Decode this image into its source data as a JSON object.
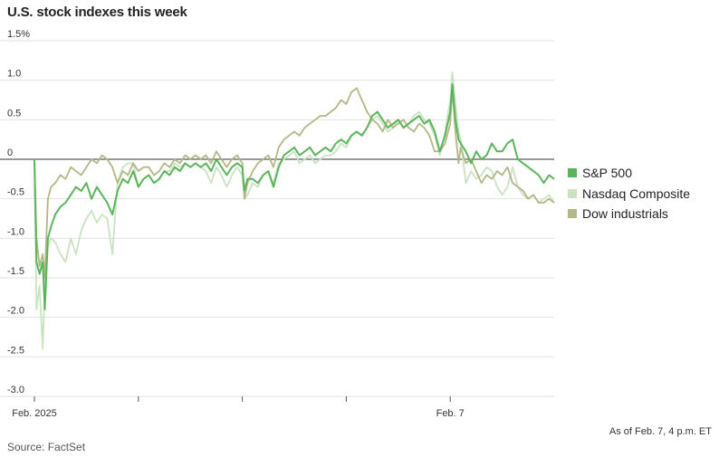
{
  "title": "U.S. stock indexes this week",
  "as_of": "As of Feb. 7, 4 p.m. ET",
  "source": "Source: FactSet",
  "chart_data": {
    "type": "line",
    "title": "U.S. stock indexes this week",
    "y_tick_labels": [
      "1.5%",
      "1.0",
      "0.5",
      "0",
      "-0.5",
      "-1.0",
      "-1.5",
      "-2.0",
      "-2.5",
      "-3.0"
    ],
    "y_tick_values": [
      1.5,
      1.0,
      0.5,
      0,
      -0.5,
      -1.0,
      -1.5,
      -2.0,
      -2.5,
      -3.0
    ],
    "ylim": [
      -3.0,
      1.5
    ],
    "x_tick_labels": [
      {
        "label": "Feb. 2025",
        "x": 0
      },
      {
        "label": "Feb. 7",
        "x": 4
      }
    ],
    "x_tick_marks": [
      0,
      1,
      2,
      3,
      4
    ],
    "xlim": [
      0,
      5
    ],
    "grid": true,
    "legend_position": "right",
    "series": [
      {
        "name": "S&P 500",
        "color": "#5ab55a",
        "x": [
          0,
          0.02,
          0.05,
          0.08,
          0.1,
          0.13,
          0.16,
          0.2,
          0.25,
          0.3,
          0.35,
          0.4,
          0.45,
          0.5,
          0.55,
          0.6,
          0.65,
          0.7,
          0.75,
          0.8,
          0.85,
          0.9,
          0.95,
          1.0,
          1.05,
          1.1,
          1.15,
          1.2,
          1.25,
          1.3,
          1.35,
          1.4,
          1.45,
          1.5,
          1.55,
          1.6,
          1.65,
          1.7,
          1.75,
          1.8,
          1.85,
          1.9,
          1.95,
          2.0,
          2.02,
          2.05,
          2.1,
          2.15,
          2.2,
          2.25,
          2.3,
          2.35,
          2.4,
          2.45,
          2.5,
          2.55,
          2.6,
          2.65,
          2.7,
          2.75,
          2.8,
          2.85,
          2.9,
          2.95,
          3.0,
          3.05,
          3.1,
          3.15,
          3.2,
          3.25,
          3.3,
          3.35,
          3.4,
          3.45,
          3.5,
          3.55,
          3.6,
          3.65,
          3.7,
          3.75,
          3.8,
          3.85,
          3.9,
          3.95,
          4.0,
          4.02,
          4.05,
          4.08,
          4.1,
          4.15,
          4.2,
          4.25,
          4.3,
          4.35,
          4.4,
          4.45,
          4.5,
          4.55,
          4.6,
          4.65,
          4.7,
          4.75,
          4.8,
          4.85,
          4.9,
          4.95,
          5.0
        ],
        "y": [
          0,
          -1.3,
          -1.45,
          -1.3,
          -1.9,
          -1.0,
          -0.85,
          -0.7,
          -0.6,
          -0.55,
          -0.45,
          -0.35,
          -0.4,
          -0.3,
          -0.5,
          -0.35,
          -0.45,
          -0.55,
          -0.7,
          -0.4,
          -0.25,
          -0.3,
          -0.15,
          -0.35,
          -0.25,
          -0.2,
          -0.3,
          -0.25,
          -0.15,
          -0.2,
          -0.1,
          -0.15,
          -0.05,
          -0.1,
          -0.05,
          -0.1,
          -0.05,
          -0.15,
          0.0,
          -0.1,
          -0.2,
          -0.1,
          -0.05,
          -0.1,
          -0.4,
          -0.25,
          -0.25,
          -0.3,
          -0.2,
          -0.15,
          -0.35,
          -0.1,
          0.05,
          0.1,
          0.15,
          0.05,
          0.1,
          0.15,
          0.05,
          0.1,
          0.15,
          0.1,
          0.2,
          0.25,
          0.2,
          0.3,
          0.35,
          0.3,
          0.4,
          0.55,
          0.6,
          0.5,
          0.4,
          0.45,
          0.5,
          0.4,
          0.45,
          0.5,
          0.55,
          0.45,
          0.5,
          0.35,
          0.1,
          0.3,
          0.6,
          0.95,
          0.5,
          0.25,
          0.2,
          0.1,
          -0.05,
          0.1,
          0.0,
          0.05,
          0.2,
          0.1,
          0.1,
          0.2,
          0.25,
          0.0,
          -0.05,
          -0.1,
          -0.15,
          -0.2,
          -0.3,
          -0.2,
          -0.25
        ]
      },
      {
        "name": "Nasdaq Composite",
        "color": "#c9e3c2",
        "x": [
          0,
          0.02,
          0.05,
          0.08,
          0.1,
          0.13,
          0.16,
          0.2,
          0.25,
          0.3,
          0.35,
          0.4,
          0.45,
          0.5,
          0.55,
          0.6,
          0.65,
          0.7,
          0.75,
          0.8,
          0.85,
          0.9,
          0.95,
          1.0,
          1.05,
          1.1,
          1.15,
          1.2,
          1.25,
          1.3,
          1.35,
          1.4,
          1.45,
          1.5,
          1.55,
          1.6,
          1.65,
          1.7,
          1.75,
          1.8,
          1.85,
          1.9,
          1.95,
          2.0,
          2.02,
          2.05,
          2.1,
          2.15,
          2.2,
          2.25,
          2.3,
          2.35,
          2.4,
          2.45,
          2.5,
          2.55,
          2.6,
          2.65,
          2.7,
          2.75,
          2.8,
          2.85,
          2.9,
          2.95,
          3.0,
          3.05,
          3.1,
          3.15,
          3.2,
          3.25,
          3.3,
          3.35,
          3.4,
          3.45,
          3.5,
          3.55,
          3.6,
          3.65,
          3.7,
          3.75,
          3.8,
          3.85,
          3.9,
          3.95,
          4.0,
          4.02,
          4.05,
          4.08,
          4.1,
          4.15,
          4.2,
          4.25,
          4.3,
          4.35,
          4.4,
          4.45,
          4.5,
          4.55,
          4.6,
          4.65,
          4.7,
          4.75,
          4.8,
          4.85,
          4.9,
          4.95,
          5.0
        ],
        "y": [
          0,
          -1.9,
          -1.6,
          -2.4,
          -1.6,
          -1.1,
          -1.0,
          -1.05,
          -1.2,
          -1.3,
          -1.0,
          -1.2,
          -0.9,
          -0.75,
          -0.65,
          -0.8,
          -0.7,
          -0.75,
          -1.2,
          -0.3,
          -0.1,
          -0.05,
          -0.05,
          -0.35,
          -0.25,
          -0.2,
          -0.3,
          -0.25,
          -0.15,
          -0.15,
          -0.05,
          -0.1,
          -0.05,
          -0.1,
          -0.05,
          -0.1,
          -0.15,
          -0.3,
          -0.1,
          -0.2,
          -0.35,
          -0.2,
          -0.1,
          -0.2,
          -0.5,
          -0.45,
          -0.3,
          -0.35,
          -0.2,
          -0.15,
          -0.3,
          -0.05,
          0.0,
          0.05,
          0.1,
          -0.05,
          0.0,
          0.05,
          -0.05,
          0.0,
          0.05,
          0.05,
          0.1,
          0.2,
          0.15,
          0.3,
          0.35,
          0.3,
          0.4,
          0.5,
          0.55,
          0.45,
          0.35,
          0.4,
          0.5,
          0.4,
          0.45,
          0.55,
          0.6,
          0.5,
          0.45,
          0.3,
          0.05,
          0.35,
          0.75,
          1.1,
          0.7,
          0.35,
          0.25,
          -0.3,
          -0.15,
          -0.25,
          -0.2,
          -0.1,
          -0.15,
          -0.35,
          -0.45,
          -0.35,
          -0.1,
          -0.35,
          -0.45,
          -0.5,
          -0.45,
          -0.55,
          -0.5,
          -0.45,
          -0.55
        ]
      },
      {
        "name": "Dow industrials",
        "color": "#b3b685",
        "x": [
          0,
          0.02,
          0.05,
          0.08,
          0.1,
          0.13,
          0.16,
          0.2,
          0.25,
          0.3,
          0.35,
          0.4,
          0.45,
          0.5,
          0.55,
          0.6,
          0.65,
          0.7,
          0.75,
          0.8,
          0.85,
          0.9,
          0.95,
          1.0,
          1.05,
          1.1,
          1.15,
          1.2,
          1.25,
          1.3,
          1.35,
          1.4,
          1.45,
          1.5,
          1.55,
          1.6,
          1.65,
          1.7,
          1.75,
          1.8,
          1.85,
          1.9,
          1.95,
          2.0,
          2.02,
          2.05,
          2.1,
          2.15,
          2.2,
          2.25,
          2.3,
          2.35,
          2.4,
          2.45,
          2.5,
          2.55,
          2.6,
          2.65,
          2.7,
          2.75,
          2.8,
          2.85,
          2.9,
          2.95,
          3.0,
          3.05,
          3.1,
          3.15,
          3.2,
          3.25,
          3.3,
          3.35,
          3.4,
          3.45,
          3.5,
          3.55,
          3.6,
          3.65,
          3.7,
          3.75,
          3.8,
          3.85,
          3.9,
          3.95,
          4.0,
          4.02,
          4.05,
          4.08,
          4.1,
          4.15,
          4.2,
          4.25,
          4.3,
          4.35,
          4.4,
          4.45,
          4.5,
          4.55,
          4.6,
          4.65,
          4.7,
          4.75,
          4.8,
          4.85,
          4.9,
          4.95,
          5.0
        ],
        "y": [
          0,
          -1.0,
          -1.35,
          -1.2,
          -1.5,
          -0.5,
          -0.35,
          -0.3,
          -0.2,
          -0.25,
          -0.1,
          -0.15,
          -0.2,
          -0.1,
          0.0,
          -0.05,
          0.05,
          0.0,
          -0.1,
          -0.3,
          -0.15,
          -0.2,
          -0.05,
          -0.15,
          -0.1,
          -0.1,
          -0.2,
          -0.15,
          -0.05,
          -0.1,
          0.0,
          -0.05,
          0.05,
          0.0,
          0.05,
          0.0,
          0.05,
          -0.05,
          0.1,
          0.0,
          -0.1,
          0.0,
          0.05,
          -0.05,
          -0.5,
          -0.3,
          -0.15,
          -0.05,
          0.0,
          0.05,
          -0.1,
          0.15,
          0.25,
          0.3,
          0.35,
          0.3,
          0.4,
          0.45,
          0.5,
          0.55,
          0.55,
          0.6,
          0.65,
          0.75,
          0.7,
          0.85,
          0.9,
          0.75,
          0.6,
          0.5,
          0.45,
          0.35,
          0.5,
          0.4,
          0.45,
          0.5,
          0.4,
          0.35,
          0.45,
          0.4,
          0.3,
          0.1,
          0.1,
          0.2,
          0.45,
          0.9,
          0.35,
          -0.05,
          0.15,
          -0.05,
          0.0,
          -0.15,
          -0.3,
          -0.2,
          -0.25,
          -0.15,
          -0.2,
          -0.1,
          -0.3,
          -0.35,
          -0.4,
          -0.5,
          -0.45,
          -0.55,
          -0.55,
          -0.5,
          -0.55
        ]
      }
    ]
  }
}
